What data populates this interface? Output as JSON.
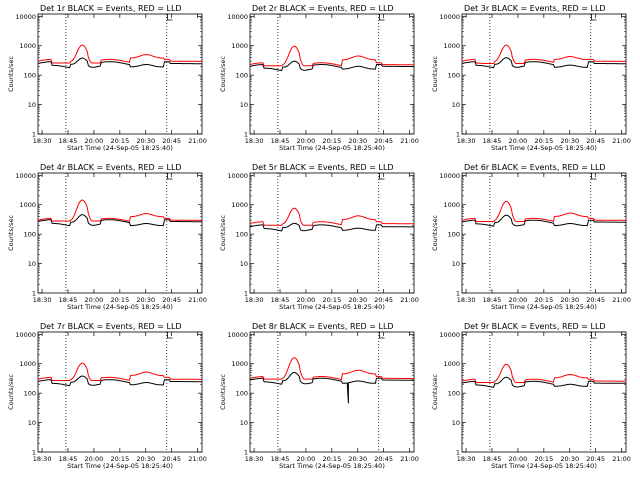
{
  "chart_data": [
    {
      "type": "line",
      "title": "Det 1r BLACK = Events, RED = LLD",
      "xlabel": "",
      "ylabel": "Counts/sec",
      "x_ticks": [
        "18:30",
        "18:45",
        "20:00",
        "20:15",
        "20:30",
        "20:45",
        "21:00"
      ],
      "y_ticks": [
        "1",
        "10",
        "100",
        "1000",
        "10000"
      ],
      "yscale": "log",
      "ylim": [
        1,
        12000
      ],
      "series": [
        {
          "color": "#000000",
          "peak": 420,
          "base": 250,
          "hump": 230,
          "low": 150,
          "spike": null
        },
        {
          "color": "#ff0000",
          "peak": 1100,
          "base": 300,
          "hump": 500,
          "low": 260,
          "spike": null
        }
      ]
    },
    {
      "type": "line",
      "title": "Det 2r BLACK = Events, RED = LLD",
      "xlabel": "",
      "ylabel": "Counts/sec",
      "x_ticks": [
        "18:30",
        "18:45",
        "20:00",
        "20:15",
        "20:30",
        "20:45",
        "21:00"
      ],
      "y_ticks": [
        "1",
        "10",
        "100",
        "1000",
        "10000"
      ],
      "yscale": "log",
      "ylim": [
        1,
        12000
      ],
      "series": [
        {
          "color": "#000000",
          "peak": 330,
          "base": 200,
          "hump": 200,
          "low": 120,
          "spike": null
        },
        {
          "color": "#ff0000",
          "peak": 1000,
          "base": 230,
          "hump": 450,
          "low": 210,
          "spike": null
        }
      ]
    },
    {
      "type": "line",
      "title": "Det 3r BLACK = Events, RED = LLD",
      "xlabel": "",
      "ylabel": "Counts/sec",
      "x_ticks": [
        "18:30",
        "18:45",
        "20:00",
        "20:15",
        "20:30",
        "20:45",
        "21:00"
      ],
      "y_ticks": [
        "1",
        "10",
        "100",
        "1000",
        "10000"
      ],
      "yscale": "log",
      "ylim": [
        1,
        12000
      ],
      "series": [
        {
          "color": "#000000",
          "peak": 430,
          "base": 250,
          "hump": 220,
          "low": 150,
          "spike": null
        },
        {
          "color": "#ff0000",
          "peak": 1100,
          "base": 300,
          "hump": 430,
          "low": 250,
          "spike": null
        }
      ]
    },
    {
      "type": "line",
      "title": "Det 4r BLACK = Events, RED = LLD",
      "xlabel": "",
      "ylabel": "Counts/sec",
      "x_ticks": [
        "18:30",
        "18:45",
        "20:00",
        "20:15",
        "20:30",
        "20:45",
        "21:00"
      ],
      "y_ticks": [
        "1",
        "10",
        "100",
        "1000",
        "10000"
      ],
      "yscale": "log",
      "ylim": [
        1,
        12000
      ],
      "series": [
        {
          "color": "#000000",
          "peak": 500,
          "base": 270,
          "hump": 230,
          "low": 160,
          "spike": null
        },
        {
          "color": "#ff0000",
          "peak": 1500,
          "base": 300,
          "hump": 500,
          "low": 280,
          "spike": null
        }
      ]
    },
    {
      "type": "line",
      "title": "Det 5r BLACK = Events, RED = LLD",
      "xlabel": "",
      "ylabel": "Counts/sec",
      "x_ticks": [
        "18:30",
        "18:45",
        "20:00",
        "20:15",
        "20:30",
        "20:45",
        "21:00"
      ],
      "y_ticks": [
        "1",
        "10",
        "100",
        "1000",
        "10000"
      ],
      "yscale": "log",
      "ylim": [
        1,
        12000
      ],
      "series": [
        {
          "color": "#000000",
          "peak": 260,
          "base": 180,
          "hump": 160,
          "low": 110,
          "spike": null
        },
        {
          "color": "#ff0000",
          "peak": 800,
          "base": 230,
          "hump": 420,
          "low": 200,
          "spike": null
        }
      ]
    },
    {
      "type": "line",
      "title": "Det 6r BLACK = Events, RED = LLD",
      "xlabel": "",
      "ylabel": "Counts/sec",
      "x_ticks": [
        "18:30",
        "18:45",
        "20:00",
        "20:15",
        "20:30",
        "20:45",
        "21:00"
      ],
      "y_ticks": [
        "1",
        "10",
        "100",
        "1000",
        "10000"
      ],
      "yscale": "log",
      "ylim": [
        1,
        12000
      ],
      "series": [
        {
          "color": "#000000",
          "peak": 480,
          "base": 260,
          "hump": 230,
          "low": 160,
          "spike": null
        },
        {
          "color": "#ff0000",
          "peak": 1350,
          "base": 300,
          "hump": 520,
          "low": 270,
          "spike": null
        }
      ]
    },
    {
      "type": "line",
      "title": "Det 7r BLACK = Events, RED = LLD",
      "xlabel": "",
      "ylabel": "Counts/sec",
      "x_ticks": [
        "18:30",
        "18:45",
        "20:00",
        "20:15",
        "20:30",
        "20:45",
        "21:00"
      ],
      "y_ticks": [
        "1",
        "10",
        "100",
        "1000",
        "10000"
      ],
      "yscale": "log",
      "ylim": [
        1,
        12000
      ],
      "series": [
        {
          "color": "#000000",
          "peak": 420,
          "base": 250,
          "hump": 230,
          "low": 150,
          "spike": null
        },
        {
          "color": "#ff0000",
          "peak": 1100,
          "base": 300,
          "hump": 520,
          "low": 270,
          "spike": null
        }
      ]
    },
    {
      "type": "line",
      "title": "Det 8r BLACK = Events, RED = LLD",
      "xlabel": "",
      "ylabel": "Counts/sec",
      "x_ticks": [
        "18:30",
        "18:45",
        "20:00",
        "20:15",
        "20:30",
        "20:45",
        "21:00"
      ],
      "y_ticks": [
        "1",
        "10",
        "100",
        "1000",
        "10000"
      ],
      "yscale": "log",
      "ylim": [
        1,
        12000
      ],
      "series": [
        {
          "color": "#000000",
          "peak": 550,
          "base": 280,
          "hump": 260,
          "low": 170,
          "spike": 45
        },
        {
          "color": "#ff0000",
          "peak": 1650,
          "base": 320,
          "hump": 600,
          "low": 300,
          "spike": null
        }
      ]
    },
    {
      "type": "line",
      "title": "Det 9r BLACK = Events, RED = LLD",
      "xlabel": "",
      "ylabel": "Counts/sec",
      "x_ticks": [
        "18:30",
        "18:45",
        "20:00",
        "20:15",
        "20:30",
        "20:45",
        "21:00"
      ],
      "y_ticks": [
        "1",
        "10",
        "100",
        "1000",
        "10000"
      ],
      "yscale": "log",
      "ylim": [
        1,
        12000
      ],
      "series": [
        {
          "color": "#000000",
          "peak": 380,
          "base": 220,
          "hump": 200,
          "low": 140,
          "spike": null
        },
        {
          "color": "#ff0000",
          "peak": 1000,
          "base": 260,
          "hump": 430,
          "low": 230,
          "spike": null
        }
      ]
    }
  ],
  "footer_label": "Start Time (24-Sep-05 18:25:40)"
}
